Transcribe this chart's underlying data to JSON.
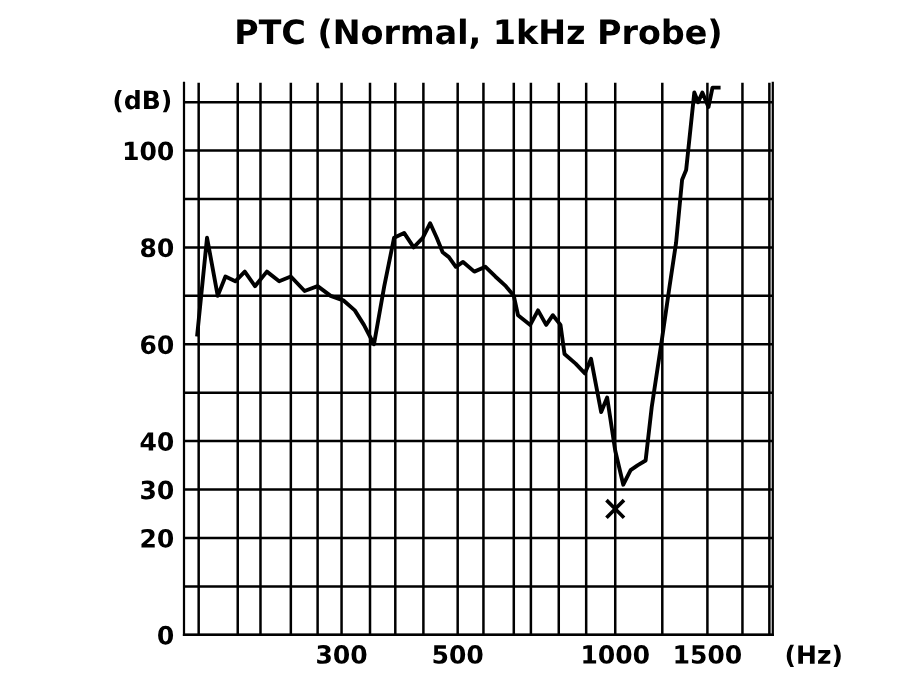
{
  "chart_data": {
    "type": "line",
    "title": "PTC (Normal, 1kHz Probe)",
    "ylabel": "(dB)",
    "xlabel": "(Hz)",
    "log": "x",
    "grid": true,
    "xlim": [
      150,
      2000
    ],
    "ylim": [
      0,
      114
    ],
    "xticks": [
      {
        "value": 160,
        "label": null
      },
      {
        "value": 190,
        "label": null
      },
      {
        "value": 210,
        "label": null
      },
      {
        "value": 240,
        "label": null
      },
      {
        "value": 270,
        "label": null
      },
      300,
      {
        "value": 340,
        "label": null
      },
      {
        "value": 380,
        "label": null
      },
      {
        "value": 430,
        "label": null
      },
      500,
      {
        "value": 560,
        "label": null
      },
      {
        "value": 640,
        "label": null
      },
      {
        "value": 690,
        "label": null
      },
      {
        "value": 780,
        "label": null
      },
      {
        "value": 880,
        "label": null
      },
      1000,
      {
        "value": 1230,
        "label": null
      },
      1500,
      {
        "value": 1750,
        "label": null
      },
      {
        "value": 1970,
        "label": null
      }
    ],
    "yticks": [
      0,
      {
        "value": 10,
        "label": null
      },
      20,
      30,
      40,
      {
        "value": 50,
        "label": null
      },
      60,
      {
        "value": 70,
        "label": null
      },
      80,
      {
        "value": 90,
        "label": null
      },
      100,
      {
        "value": 110,
        "label": null
      }
    ],
    "series": [
      {
        "color": "#000000",
        "marker": "none",
        "x": [
          159,
          166,
          174,
          180,
          188,
          196,
          205,
          216,
          228,
          240,
          255,
          270,
          286,
          303,
          318,
          331,
          346,
          362,
          378,
          395,
          412,
          429,
          443,
          456,
          468,
          481,
          496,
          512,
          538,
          565,
          590,
          618,
          640,
          652,
          688,
          712,
          738,
          760,
          786,
          800,
          840,
          875,
          899,
          940,
          965,
          1000,
          1036,
          1070,
          1103,
          1143,
          1174,
          1228,
          1270,
          1307,
          1342,
          1366,
          1416,
          1440,
          1467,
          1507,
          1534,
          1576
        ],
        "values": [
          62,
          82,
          70,
          74,
          73,
          75,
          72,
          75,
          73,
          74,
          71,
          72,
          70,
          69,
          67,
          64,
          60,
          72,
          82,
          83,
          80,
          82,
          85,
          82,
          79,
          78,
          76,
          77,
          75,
          76,
          74,
          72,
          70,
          66,
          64,
          67,
          64,
          66,
          64,
          58,
          56,
          54,
          57,
          46,
          49,
          38,
          31,
          34,
          35,
          36,
          47,
          61,
          72,
          81,
          94,
          96,
          112,
          110,
          112,
          109,
          113,
          113
        ]
      },
      {
        "type": "scatter",
        "color": "#000000",
        "marker": "cross",
        "x": [
          1000
        ],
        "values": [
          26
        ]
      }
    ]
  }
}
